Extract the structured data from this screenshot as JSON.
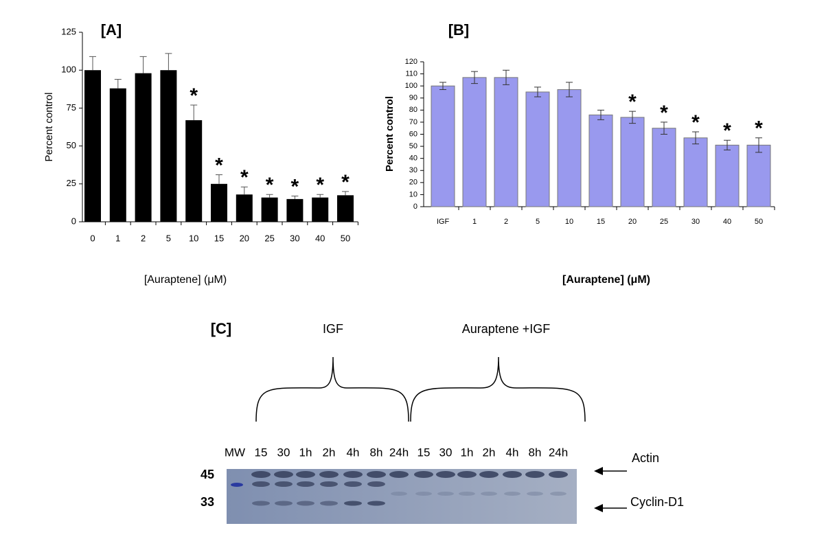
{
  "chart_data": [
    {
      "type": "bar",
      "title": "[A]",
      "x_label": "[Auraptene] (μM)",
      "y_label": "Percent control",
      "categories": [
        "0",
        "1",
        "2",
        "5",
        "10",
        "15",
        "20",
        "25",
        "30",
        "40",
        "50"
      ],
      "values": [
        100,
        88,
        98,
        100,
        67,
        25,
        18,
        16,
        15,
        16,
        17.5
      ],
      "errors": [
        9,
        6,
        11,
        11,
        10,
        6,
        5,
        2,
        2,
        2,
        2.5
      ],
      "markers": [
        null,
        null,
        null,
        null,
        "*",
        "*",
        "*",
        "*",
        "*",
        "*",
        "*"
      ],
      "color": "#000000",
      "error_style": "upper",
      "ylim": [
        0,
        125
      ],
      "yticks": [
        0,
        25,
        50,
        75,
        100,
        125
      ]
    },
    {
      "type": "bar",
      "title": "[B]",
      "x_label": "[Auraptene] (μM)",
      "y_label": "Percent control",
      "categories": [
        "IGF",
        "1",
        "2",
        "5",
        "10",
        "15",
        "20",
        "25",
        "30",
        "40",
        "50"
      ],
      "values": [
        100,
        107,
        107,
        95,
        97,
        76,
        74,
        65,
        57,
        51,
        51
      ],
      "errors": [
        3,
        5,
        6,
        4,
        6,
        4,
        5,
        5,
        5,
        4,
        6
      ],
      "markers": [
        null,
        null,
        null,
        null,
        null,
        null,
        "*",
        "*",
        "*",
        "*",
        "*"
      ],
      "color": "#9999ee",
      "error_style": "both",
      "ylim": [
        0,
        120
      ],
      "yticks": [
        0,
        10,
        20,
        30,
        40,
        50,
        60,
        70,
        80,
        90,
        100,
        110,
        120
      ]
    }
  ],
  "blot": {
    "title": "[C]",
    "groups": [
      "IGF",
      "Auraptene +IGF"
    ],
    "lanes": [
      "MW",
      "15",
      "30",
      "1h",
      "2h",
      "4h",
      "8h",
      "24h",
      "15",
      "30",
      "1h",
      "2h",
      "4h",
      "8h",
      "24h"
    ],
    "size_markers": [
      "45",
      "33"
    ],
    "bands": [
      "Actin",
      "Cyclin-D1"
    ]
  }
}
